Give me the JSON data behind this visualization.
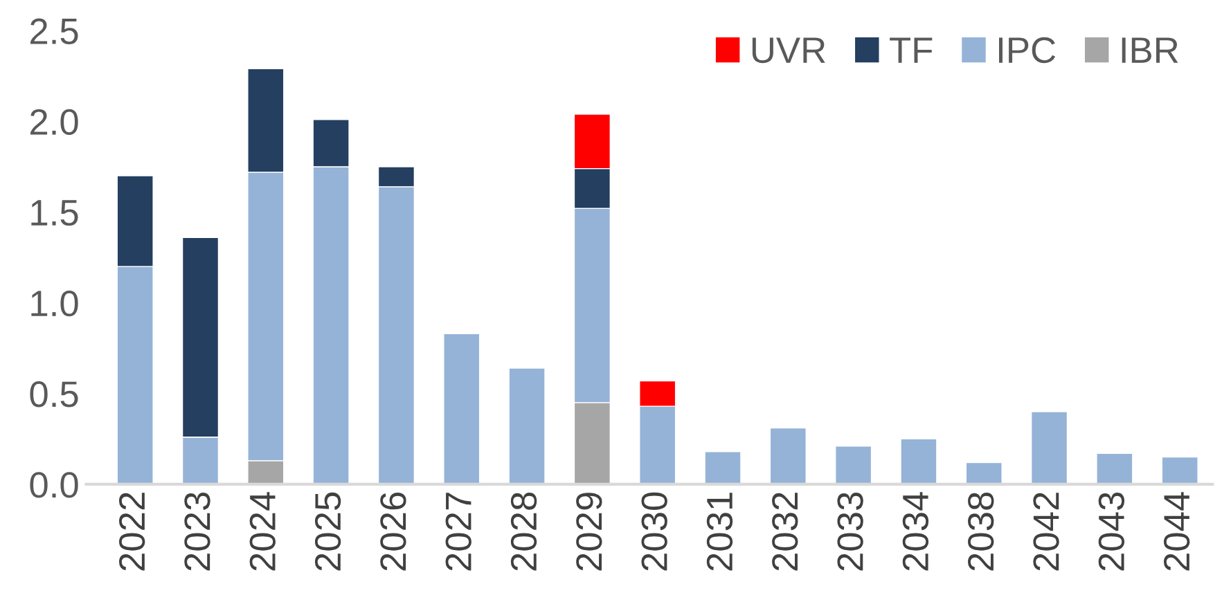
{
  "chart_data": {
    "type": "bar",
    "stacked": true,
    "categories": [
      "2022",
      "2023",
      "2024",
      "2025",
      "2026",
      "2027",
      "2028",
      "2029",
      "2030",
      "2031",
      "2032",
      "2033",
      "2034",
      "2038",
      "2042",
      "2043",
      "2044"
    ],
    "series": [
      {
        "name": "IBR",
        "color": "#a6a6a6",
        "values": [
          null,
          null,
          0.13,
          null,
          null,
          null,
          null,
          0.45,
          null,
          null,
          null,
          null,
          null,
          null,
          null,
          null,
          null
        ]
      },
      {
        "name": "IPC",
        "color": "#95b3d7",
        "values": [
          1.2,
          0.26,
          1.59,
          1.75,
          1.64,
          0.83,
          0.64,
          1.07,
          0.43,
          0.18,
          0.31,
          0.21,
          0.25,
          0.12,
          0.4,
          0.17,
          0.15
        ]
      },
      {
        "name": "TF",
        "color": "#243f60",
        "values": [
          0.5,
          1.1,
          0.57,
          0.26,
          0.11,
          null,
          null,
          0.22,
          null,
          null,
          null,
          null,
          null,
          null,
          null,
          null,
          null
        ]
      },
      {
        "name": "UVR",
        "color": "#ff0000",
        "values": [
          null,
          null,
          null,
          null,
          null,
          null,
          null,
          0.3,
          0.14,
          null,
          null,
          null,
          null,
          null,
          null,
          null,
          null
        ]
      }
    ],
    "ylim": [
      0,
      2.5
    ],
    "yticks": [
      {
        "value": 0,
        "label": "0.0"
      },
      {
        "value": 0.5,
        "label": "0.5"
      },
      {
        "value": 1,
        "label": "1.0"
      },
      {
        "value": 1.5,
        "label": "1.5"
      },
      {
        "value": 2,
        "label": "2.0"
      },
      {
        "value": 2.5,
        "label": "2.5"
      }
    ],
    "grid": false,
    "legend": "top right"
  }
}
